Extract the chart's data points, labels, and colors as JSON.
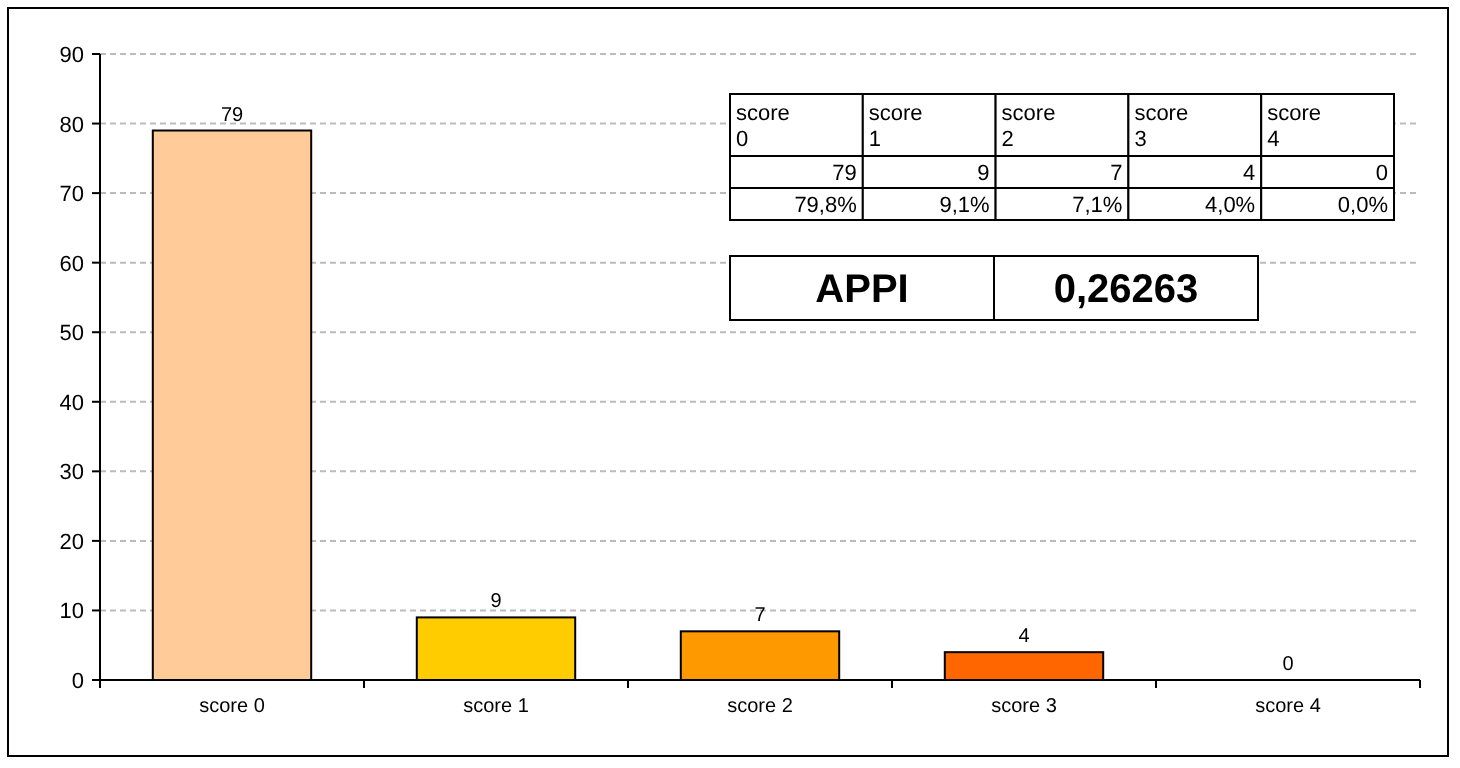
{
  "chart_data": {
    "type": "bar",
    "categories": [
      "score 0",
      "score 1",
      "score 2",
      "score 3",
      "score 4"
    ],
    "values": [
      79,
      9,
      7,
      4,
      0
    ],
    "colors": [
      "#ffcc99",
      "#ffcc00",
      "#ff9900",
      "#ff6600",
      "#ff3300"
    ],
    "ylim": [
      0,
      90
    ],
    "yticks": [
      0,
      10,
      20,
      30,
      40,
      50,
      60,
      70,
      80,
      90
    ],
    "grid": "y",
    "data_labels": true,
    "annotations": [
      "79",
      "9",
      "7",
      "4",
      "0",
      "79,8%",
      "9,1%",
      "7,1%",
      "4,0%",
      "0,0%",
      "APPI",
      "0,26263"
    ]
  }
}
